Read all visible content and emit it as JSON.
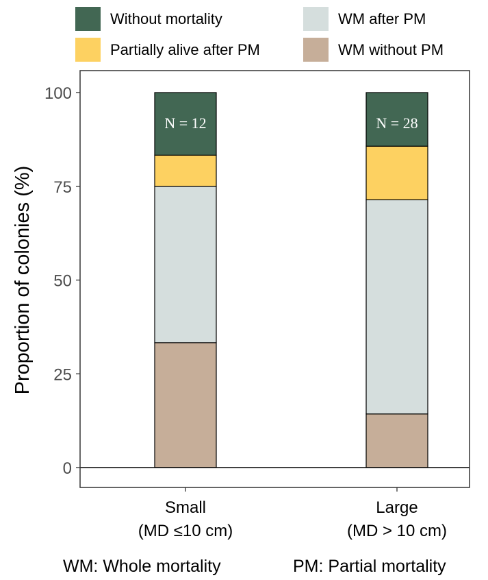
{
  "chart_data": {
    "type": "bar",
    "stacked": true,
    "categories": [
      "Small\n(MD ≤10 cm)",
      "Large\n(MD > 10 cm)"
    ],
    "series": [
      {
        "name": "WM without PM",
        "color": "#c6ae99",
        "values": [
          33.3,
          14.3
        ]
      },
      {
        "name": "WM after PM",
        "color": "#d5dedd",
        "values": [
          41.7,
          57.1
        ]
      },
      {
        "name": "Partially alive after PM",
        "color": "#fdd161",
        "values": [
          8.3,
          14.3
        ]
      },
      {
        "name": "Without mortality",
        "color": "#426753",
        "values": [
          16.7,
          14.3
        ]
      }
    ],
    "annotations": [
      "N = 12",
      "N = 28"
    ],
    "ylabel": "Proportion of colonies (%)",
    "xlabel": "",
    "ylim": [
      0,
      100
    ],
    "yticks": [
      0,
      25,
      50,
      75,
      100
    ],
    "grid": false,
    "legend_position": "top"
  },
  "legend": [
    {
      "label": "Without mortality",
      "color": "#426753"
    },
    {
      "label": "WM after PM",
      "color": "#d5dedd"
    },
    {
      "label": "Partially alive after PM",
      "color": "#fdd161"
    },
    {
      "label": "WM without PM",
      "color": "#c6ae99"
    }
  ],
  "footnotes": {
    "left": "WM: Whole mortality",
    "right": "PM: Partial mortality"
  }
}
